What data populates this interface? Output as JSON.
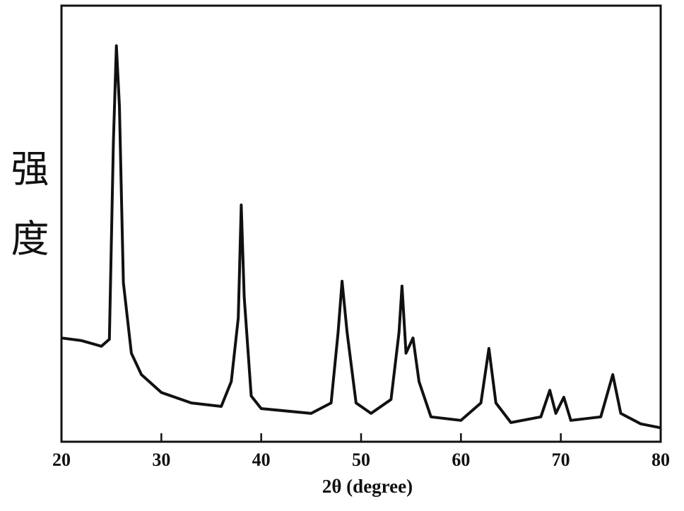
{
  "chart_data": {
    "type": "line",
    "xlabel": "2θ (degree)",
    "ylabel": "强度",
    "xlim": [
      20,
      80
    ],
    "xticks": [
      20,
      30,
      40,
      50,
      60,
      70,
      80
    ],
    "ylim": [
      0,
      100
    ],
    "color": "#111111",
    "x": [
      20,
      22,
      24,
      24.8,
      25.2,
      25.5,
      25.8,
      26.2,
      27,
      28,
      30,
      33,
      36,
      37,
      37.7,
      38,
      38.3,
      39,
      40,
      45,
      47,
      47.7,
      48.1,
      48.6,
      49.5,
      51,
      53,
      53.8,
      54.1,
      54.5,
      55.2,
      55.8,
      57,
      60,
      62,
      62.8,
      63.5,
      65,
      68,
      68.9,
      69.5,
      70.3,
      71,
      74,
      75.2,
      76,
      78,
      80
    ],
    "y": [
      23.8,
      23.2,
      21.9,
      23.5,
      68.9,
      90.8,
      77.0,
      36.5,
      20.3,
      15.4,
      11.3,
      8.9,
      8.1,
      13.8,
      28.4,
      54.3,
      33.2,
      10.5,
      7.6,
      6.5,
      8.9,
      25.1,
      36.8,
      25.1,
      8.9,
      6.5,
      9.7,
      25.1,
      35.7,
      20.3,
      23.8,
      13.8,
      5.7,
      4.9,
      8.9,
      21.4,
      8.9,
      4.4,
      5.7,
      11.8,
      6.5,
      10.2,
      4.9,
      5.7,
      15.4,
      6.5,
      4.1,
      3.2
    ]
  }
}
